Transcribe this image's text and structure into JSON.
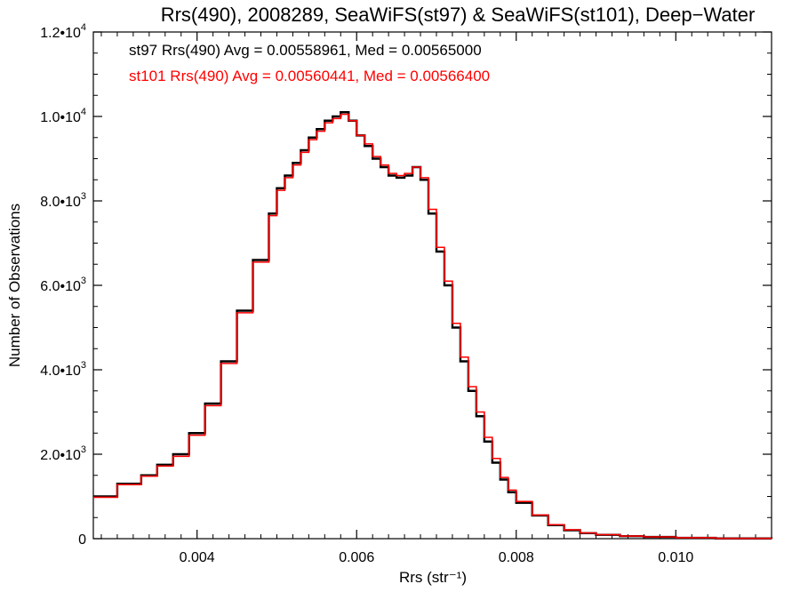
{
  "chart_data": {
    "type": "line",
    "step": true,
    "title": "Rrs(490), 2008289, SeaWiFS(st97) & SeaWiFS(st101), Deep−Water",
    "xlabel": "Rrs (str⁻¹)",
    "ylabel": "Number of Observations",
    "xlim": [
      0.0027,
      0.0112
    ],
    "ylim": [
      0,
      12000
    ],
    "x_ticks": [
      {
        "value": 0.004,
        "label": "0.004"
      },
      {
        "value": 0.006,
        "label": "0.006"
      },
      {
        "value": 0.008,
        "label": "0.008"
      },
      {
        "value": 0.01,
        "label": "0.010"
      }
    ],
    "y_ticks": [
      {
        "value": 0,
        "mant": "0",
        "exp": ""
      },
      {
        "value": 2000,
        "mant": "2.0•10",
        "exp": "3"
      },
      {
        "value": 4000,
        "mant": "4.0•10",
        "exp": "3"
      },
      {
        "value": 6000,
        "mant": "6.0•10",
        "exp": "3"
      },
      {
        "value": 8000,
        "mant": "8.0•10",
        "exp": "3"
      },
      {
        "value": 10000,
        "mant": "1.0•10",
        "exp": "4"
      },
      {
        "value": 12000,
        "mant": "1.2•10",
        "exp": "4"
      }
    ],
    "grid": false,
    "legend_position": "top-left",
    "x": [
      0.0027,
      0.003,
      0.0033,
      0.0035,
      0.0037,
      0.0039,
      0.0041,
      0.0043,
      0.0045,
      0.0047,
      0.0049,
      0.005,
      0.0051,
      0.0052,
      0.0053,
      0.0054,
      0.0055,
      0.0056,
      0.0057,
      0.0058,
      0.0059,
      0.006,
      0.0061,
      0.0062,
      0.0063,
      0.0064,
      0.0065,
      0.0066,
      0.0067,
      0.0068,
      0.0069,
      0.007,
      0.0071,
      0.0072,
      0.0073,
      0.0074,
      0.0075,
      0.0076,
      0.0077,
      0.0078,
      0.0079,
      0.008,
      0.0082,
      0.0084,
      0.0086,
      0.0088,
      0.009,
      0.0093,
      0.0096,
      0.01,
      0.0105,
      0.0112
    ],
    "series": [
      {
        "name": "st97",
        "color": "#000000",
        "legend": "st97 Rrs(490) Avg = 0.00558961, Med = 0.00565000",
        "values": [
          1000,
          1300,
          1500,
          1750,
          2000,
          2500,
          3200,
          4200,
          5400,
          6600,
          7700,
          8300,
          8600,
          8900,
          9200,
          9500,
          9700,
          9900,
          10000,
          10100,
          9900,
          9550,
          9300,
          9000,
          8800,
          8600,
          8550,
          8600,
          8800,
          8500,
          7700,
          6800,
          6000,
          5000,
          4200,
          3500,
          2900,
          2300,
          1800,
          1400,
          1100,
          850,
          550,
          320,
          200,
          130,
          90,
          60,
          40,
          20,
          5,
          0
        ]
      },
      {
        "name": "st101",
        "color": "#ff0000",
        "legend": "st101 Rrs(490) Avg = 0.00560441, Med = 0.00566400",
        "values": [
          980,
          1280,
          1480,
          1720,
          1950,
          2450,
          3150,
          4150,
          5350,
          6550,
          7650,
          8250,
          8550,
          8850,
          9150,
          9450,
          9650,
          9850,
          9950,
          10050,
          9900,
          9550,
          9350,
          9050,
          8850,
          8650,
          8600,
          8650,
          8800,
          8550,
          7800,
          6900,
          6100,
          5100,
          4300,
          3600,
          3000,
          2400,
          1900,
          1450,
          1150,
          880,
          560,
          330,
          210,
          135,
          95,
          62,
          42,
          22,
          6,
          0
        ]
      }
    ]
  }
}
